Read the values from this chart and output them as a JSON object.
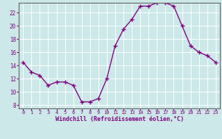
{
  "x": [
    0,
    1,
    2,
    3,
    4,
    5,
    6,
    7,
    8,
    9,
    10,
    11,
    12,
    13,
    14,
    15,
    16,
    17,
    18,
    19,
    20,
    21,
    22,
    23
  ],
  "y": [
    14.5,
    13.0,
    12.5,
    11.0,
    11.5,
    11.5,
    11.0,
    8.5,
    8.5,
    9.0,
    12.0,
    17.0,
    19.5,
    21.0,
    23.0,
    23.0,
    23.5,
    23.5,
    23.0,
    20.0,
    17.0,
    16.0,
    15.5,
    14.5
  ],
  "xlabel": "Windchill (Refroidissement éolien,°C)",
  "line_color": "#800080",
  "marker": "+",
  "bg_color": "#cce8e8",
  "grid_color": "#ffffff",
  "axis_color": "#606060",
  "tick_color": "#800080",
  "label_color": "#800080",
  "ylim": [
    7.5,
    23.5
  ],
  "yticks": [
    8,
    10,
    12,
    14,
    16,
    18,
    20,
    22
  ],
  "xticks": [
    0,
    1,
    2,
    3,
    4,
    5,
    6,
    7,
    8,
    9,
    10,
    11,
    12,
    13,
    14,
    15,
    16,
    17,
    18,
    19,
    20,
    21,
    22,
    23
  ],
  "figsize": [
    3.2,
    2.0
  ],
  "dpi": 100
}
